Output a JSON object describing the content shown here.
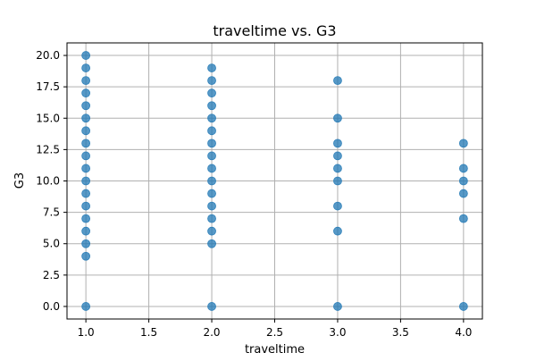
{
  "chart_data": {
    "type": "scatter",
    "title": "traveltime vs. G3",
    "xlabel": "traveltime",
    "ylabel": "G3",
    "xlim": [
      0.85,
      4.15
    ],
    "ylim": [
      -1.0,
      21.0
    ],
    "x_ticks": [
      1.0,
      1.5,
      2.0,
      2.5,
      3.0,
      3.5,
      4.0
    ],
    "y_ticks": [
      0.0,
      2.5,
      5.0,
      7.5,
      10.0,
      12.5,
      15.0,
      17.5,
      20.0
    ],
    "grid": true,
    "legend": "none",
    "colors": {
      "point": "#1f77b4",
      "grid": "#b0b0b0",
      "axis": "#000000"
    },
    "series": [
      {
        "points": [
          [
            1,
            0
          ],
          [
            1,
            4
          ],
          [
            1,
            5
          ],
          [
            1,
            6
          ],
          [
            1,
            7
          ],
          [
            1,
            8
          ],
          [
            1,
            9
          ],
          [
            1,
            10
          ],
          [
            1,
            11
          ],
          [
            1,
            12
          ],
          [
            1,
            13
          ],
          [
            1,
            14
          ],
          [
            1,
            15
          ],
          [
            1,
            16
          ],
          [
            1,
            17
          ],
          [
            1,
            18
          ],
          [
            1,
            19
          ],
          [
            1,
            20
          ],
          [
            2,
            0
          ],
          [
            2,
            5
          ],
          [
            2,
            6
          ],
          [
            2,
            7
          ],
          [
            2,
            8
          ],
          [
            2,
            9
          ],
          [
            2,
            10
          ],
          [
            2,
            11
          ],
          [
            2,
            12
          ],
          [
            2,
            13
          ],
          [
            2,
            14
          ],
          [
            2,
            15
          ],
          [
            2,
            16
          ],
          [
            2,
            17
          ],
          [
            2,
            18
          ],
          [
            2,
            19
          ],
          [
            3,
            0
          ],
          [
            3,
            6
          ],
          [
            3,
            8
          ],
          [
            3,
            10
          ],
          [
            3,
            11
          ],
          [
            3,
            12
          ],
          [
            3,
            13
          ],
          [
            3,
            15
          ],
          [
            3,
            18
          ],
          [
            4,
            0
          ],
          [
            4,
            7
          ],
          [
            4,
            9
          ],
          [
            4,
            10
          ],
          [
            4,
            11
          ],
          [
            4,
            13
          ]
        ]
      }
    ]
  }
}
